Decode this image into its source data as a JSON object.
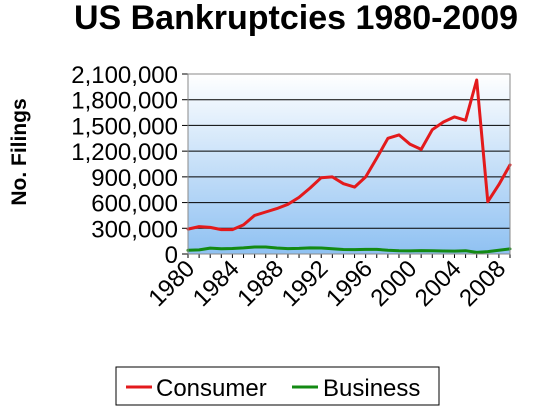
{
  "chart_data": {
    "type": "line",
    "title": "US Bankruptcies 1980-2009",
    "ylabel": "No. Filings",
    "xlabel": "",
    "x": [
      1980,
      1981,
      1982,
      1983,
      1984,
      1985,
      1986,
      1987,
      1988,
      1989,
      1990,
      1991,
      1992,
      1993,
      1994,
      1995,
      1996,
      1997,
      1998,
      1999,
      2000,
      2001,
      2002,
      2003,
      2004,
      2005,
      2006,
      2007,
      2008,
      2009
    ],
    "xlim": [
      1980,
      2009
    ],
    "x_tick_labels": [
      "1980",
      "1984",
      "1988",
      "1992",
      "1996",
      "2000",
      "2004",
      "2008"
    ],
    "x_tick_values": [
      1980,
      1984,
      1988,
      1992,
      1996,
      2000,
      2004,
      2008
    ],
    "ylim": [
      0,
      2100000
    ],
    "y_tick_labels": [
      "0",
      "300,000",
      "600,000",
      "900,000",
      "1,200,000",
      "1,500,000",
      "1,800,000",
      "2,100,000"
    ],
    "y_tick_values": [
      0,
      300000,
      600000,
      900000,
      1200000,
      1500000,
      1800000,
      2100000
    ],
    "grid": true,
    "legend_position": "bottom",
    "series": [
      {
        "name": "Consumer",
        "color": "#e31a1c",
        "values": [
          290000,
          320000,
          310000,
          285000,
          285000,
          340000,
          450000,
          490000,
          530000,
          580000,
          660000,
          770000,
          890000,
          900000,
          820000,
          780000,
          900000,
          1120000,
          1350000,
          1390000,
          1280000,
          1220000,
          1450000,
          1540000,
          1600000,
          1560000,
          2030000,
          610000,
          810000,
          1040000
        ]
      },
      {
        "name": "Business",
        "color": "#138a13",
        "values": [
          43000,
          48000,
          69000,
          62000,
          64000,
          71000,
          82000,
          82000,
          70000,
          63000,
          65000,
          71000,
          70000,
          62000,
          52000,
          51000,
          54000,
          54000,
          44000,
          38000,
          36000,
          40000,
          39000,
          35000,
          34000,
          39000,
          19000,
          28000,
          43000,
          60000
        ]
      }
    ]
  }
}
